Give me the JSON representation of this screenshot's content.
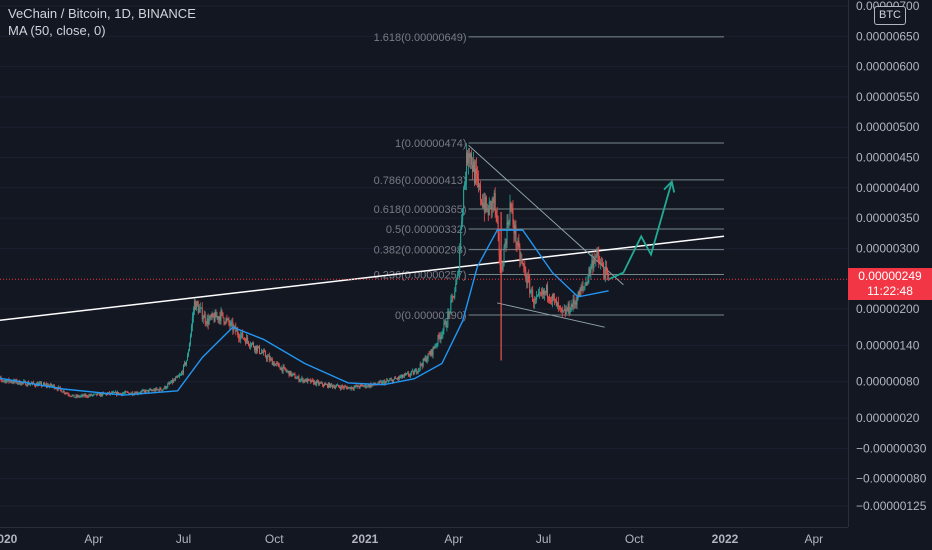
{
  "header": {
    "symbol_title": "VeChain / Bitcoin, 1D, BINANCE",
    "indicator": "MA (50, close, 0)"
  },
  "currency_badge": "BTC",
  "price_tag": {
    "price": "0.00000249",
    "countdown": "11:22:48"
  },
  "colors": {
    "background": "#131722",
    "candle_up": "#26a69a",
    "candle_down": "#ef5350",
    "ma": "#2196f3",
    "trendline": "#ffffff",
    "fib": "#8fa3a6",
    "projection_arrow": "#22ab94",
    "price_tag": "#f23645"
  },
  "chart_data": {
    "type": "candlestick",
    "x_tick_labels": [
      "2020",
      "Apr",
      "Jul",
      "Oct",
      "2021",
      "Apr",
      "Jul",
      "Oct",
      "2022",
      "Apr"
    ],
    "x_tick_dates": [
      "2020-01-01",
      "2020-04-01",
      "2020-07-01",
      "2020-10-01",
      "2021-01-01",
      "2021-04-01",
      "2021-07-01",
      "2021-10-01",
      "2022-01-01",
      "2022-04-01"
    ],
    "y_tick_labels": [
      "0.00000700",
      "0.00000650",
      "0.00000600",
      "0.00000550",
      "0.00000500",
      "0.00000450",
      "0.00000400",
      "0.00000350",
      "0.00000300",
      "0.00000200",
      "0.00000140",
      "0.00000080",
      "0.00000020",
      "−0.00000030",
      "−0.00000080",
      "−0.00000125"
    ],
    "y_tick_values": [
      7e-06,
      6.5e-06,
      6e-06,
      5.5e-06,
      5e-06,
      4.5e-06,
      4e-06,
      3.5e-06,
      3e-06,
      2e-06,
      1.4e-06,
      8e-07,
      2e-07,
      -3e-07,
      -8e-07,
      -1.25e-06
    ],
    "last_price": 2.49e-06,
    "price_path": [
      [
        "2019-12-20",
        8.5e-07
      ],
      [
        "2020-01-20",
        7.8e-07
      ],
      [
        "2020-02-20",
        7.3e-07
      ],
      [
        "2020-03-12",
        5.5e-07
      ],
      [
        "2020-04-15",
        6e-07
      ],
      [
        "2020-05-15",
        6.2e-07
      ],
      [
        "2020-06-10",
        6.8e-07
      ],
      [
        "2020-06-28",
        9e-07
      ],
      [
        "2020-07-05",
        1.2e-06
      ],
      [
        "2020-07-12",
        2.1e-06
      ],
      [
        "2020-07-25",
        1.8e-06
      ],
      [
        "2020-08-08",
        1.9e-06
      ],
      [
        "2020-08-25",
        1.6e-06
      ],
      [
        "2020-09-10",
        1.4e-06
      ],
      [
        "2020-10-01",
        1.1e-06
      ],
      [
        "2020-10-25",
        8.5e-07
      ],
      [
        "2020-11-20",
        7.5e-07
      ],
      [
        "2020-12-15",
        7e-07
      ],
      [
        "2021-01-10",
        7.5e-07
      ],
      [
        "2021-01-28",
        8.2e-07
      ],
      [
        "2021-02-20",
        9.5e-07
      ],
      [
        "2021-03-10",
        1.3e-06
      ],
      [
        "2021-03-25",
        1.8e-06
      ],
      [
        "2021-04-05",
        2.5e-06
      ],
      [
        "2021-04-10",
        3.8e-06
      ],
      [
        "2021-04-16",
        4.7e-06
      ],
      [
        "2021-04-25",
        4e-06
      ],
      [
        "2021-05-05",
        3.6e-06
      ],
      [
        "2021-05-12",
        3.8e-06
      ],
      [
        "2021-05-19",
        2.6e-06
      ],
      [
        "2021-05-28",
        3.7e-06
      ],
      [
        "2021-06-06",
        2.9e-06
      ],
      [
        "2021-06-12",
        2.6e-06
      ],
      [
        "2021-06-22",
        2.1e-06
      ],
      [
        "2021-07-05",
        2.3e-06
      ],
      [
        "2021-07-20",
        1.9e-06
      ],
      [
        "2021-08-01",
        2.1e-06
      ],
      [
        "2021-08-12",
        2.4e-06
      ],
      [
        "2021-08-22",
        2.9e-06
      ],
      [
        "2021-09-05",
        2.49e-06
      ]
    ],
    "ma50_path": [
      [
        "2019-12-20",
        8.8e-07
      ],
      [
        "2020-03-01",
        6.8e-07
      ],
      [
        "2020-05-01",
        5.8e-07
      ],
      [
        "2020-06-25",
        6.5e-07
      ],
      [
        "2020-07-20",
        1.2e-06
      ],
      [
        "2020-08-20",
        1.7e-06
      ],
      [
        "2020-09-20",
        1.5e-06
      ],
      [
        "2020-11-01",
        1.1e-06
      ],
      [
        "2020-12-15",
        7.8e-07
      ],
      [
        "2021-01-20",
        7.5e-07
      ],
      [
        "2021-02-20",
        8.5e-07
      ],
      [
        "2021-03-20",
        1.1e-06
      ],
      [
        "2021-04-10",
        1.8e-06
      ],
      [
        "2021-04-25",
        2.7e-06
      ],
      [
        "2021-05-15",
        3.3e-06
      ],
      [
        "2021-06-10",
        3.3e-06
      ],
      [
        "2021-07-10",
        2.6e-06
      ],
      [
        "2021-08-05",
        2.2e-06
      ],
      [
        "2021-09-05",
        2.3e-06
      ]
    ],
    "fibonacci_levels": [
      {
        "label": "1.618(0.00000649)",
        "value": 6.49e-06
      },
      {
        "label": "1(0.00000474)",
        "value": 4.74e-06
      },
      {
        "label": "0.786(0.00000413)",
        "value": 4.13e-06
      },
      {
        "label": "0.618(0.00000365)",
        "value": 3.65e-06
      },
      {
        "label": "0.5(0.00000332)",
        "value": 3.32e-06
      },
      {
        "label": "0.382(0.00000298)",
        "value": 2.98e-06
      },
      {
        "label": "0.236(0.00000257)",
        "value": 2.57e-06
      },
      {
        "label": "0(0.00000190)",
        "value": 1.9e-06
      }
    ],
    "fib_start_date": "2021-04-16",
    "fib_end_date": "2021-12-31",
    "trendline": {
      "from": [
        "2019-12-20",
        1.8e-06
      ],
      "to": [
        "2021-12-31",
        3.2e-06
      ]
    },
    "wedge_upper": {
      "from": [
        "2021-04-16",
        4.7e-06
      ],
      "to": [
        "2021-09-20",
        2.4e-06
      ]
    },
    "wedge_lower": {
      "from": [
        "2021-05-15",
        2.1e-06
      ],
      "to": [
        "2021-09-01",
        1.7e-06
      ]
    },
    "projection": [
      [
        "2021-09-05",
        2.49e-06
      ],
      [
        "2021-09-20",
        2.6e-06
      ],
      [
        "2021-10-08",
        3.2e-06
      ],
      [
        "2021-10-18",
        2.9e-06
      ],
      [
        "2021-11-08",
        4.1e-06
      ]
    ]
  }
}
